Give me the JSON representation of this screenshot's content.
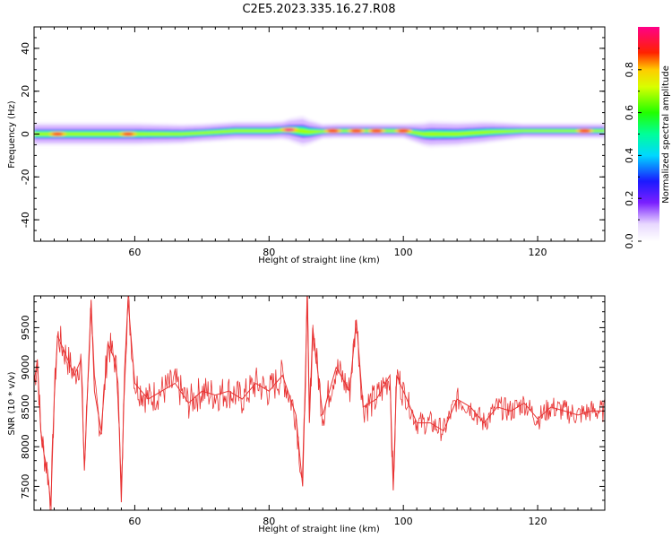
{
  "title": "C2E5.2023.335.16.27.R08",
  "chart_data": [
    {
      "type": "heatmap",
      "xlabel": "Height of straight line (km)",
      "ylabel": "Frequency (Hz)",
      "xlim": [
        45,
        130
      ],
      "ylim": [
        -50,
        50
      ],
      "xticks": [
        60,
        80,
        100,
        120
      ],
      "yticks": [
        -40,
        -20,
        0,
        20,
        40
      ],
      "xtick_labels": [
        "60",
        "80",
        "100",
        "120"
      ],
      "ytick_labels": [
        "-40",
        "-20",
        "0",
        "20",
        "40"
      ],
      "colorbar": {
        "label": "Normalized spectral amplitude",
        "range": [
          0,
          1
        ],
        "ticks": [
          0.0,
          0.2,
          0.4,
          0.6,
          0.8
        ],
        "tick_labels": [
          "0.0",
          "0.2",
          "0.4",
          "0.6",
          "0.8"
        ]
      },
      "band": {
        "center_hz": [
          [
            45,
            0
          ],
          [
            50,
            0
          ],
          [
            57,
            0
          ],
          [
            62,
            0
          ],
          [
            67,
            0
          ],
          [
            70,
            0.5
          ],
          [
            75,
            1.5
          ],
          [
            80,
            1.5
          ],
          [
            83,
            2
          ],
          [
            86,
            1
          ],
          [
            90,
            1.5
          ],
          [
            95,
            1.5
          ],
          [
            100,
            1.5
          ],
          [
            103,
            0
          ],
          [
            108,
            0
          ],
          [
            113,
            1
          ],
          [
            118,
            1.5
          ],
          [
            125,
            1.5
          ],
          [
            130,
            1.5
          ]
        ],
        "halfwidth_hz": [
          [
            45,
            3
          ],
          [
            60,
            3
          ],
          [
            70,
            2.5
          ],
          [
            82,
            2.5
          ],
          [
            85,
            4
          ],
          [
            88,
            2
          ],
          [
            100,
            2
          ],
          [
            104,
            3.5
          ],
          [
            112,
            3
          ],
          [
            118,
            2
          ],
          [
            130,
            2
          ]
        ],
        "peaks": [
          {
            "x": 48.5,
            "y": 0,
            "value": 0.95
          },
          {
            "x": 59,
            "y": 0,
            "value": 0.9
          },
          {
            "x": 83,
            "y": 2,
            "value": 1.0
          },
          {
            "x": 89.5,
            "y": 1.5,
            "value": 0.95
          },
          {
            "x": 93,
            "y": 1.5,
            "value": 0.9
          },
          {
            "x": 96,
            "y": 1.5,
            "value": 0.95
          },
          {
            "x": 100,
            "y": 1.5,
            "value": 0.9
          },
          {
            "x": 127,
            "y": 1.5,
            "value": 0.9
          }
        ]
      }
    },
    {
      "type": "line",
      "xlabel": "Height of straight line (km)",
      "ylabel": "SNR (10 * v/v)",
      "xlim": [
        45,
        130
      ],
      "ylim": [
        7200,
        9900
      ],
      "xticks": [
        60,
        80,
        100,
        120
      ],
      "yticks": [
        7500,
        8000,
        8500,
        9000,
        9500
      ],
      "xtick_labels": [
        "60",
        "80",
        "100",
        "120"
      ],
      "ytick_labels": [
        "7500",
        "8000",
        "8500",
        "9000",
        "9500"
      ],
      "series": [
        {
          "color": "#e83333",
          "x": [
            45,
            45.5,
            46,
            46.5,
            47,
            47.5,
            48,
            48.5,
            49,
            50,
            51,
            52,
            52.5,
            53,
            53.5,
            54,
            55,
            56,
            57,
            57.5,
            58,
            58.5,
            59,
            60,
            62,
            64,
            66,
            68,
            70,
            72,
            74,
            76,
            78,
            80,
            82,
            84,
            85,
            85.7,
            86,
            86.5,
            88,
            90,
            92,
            93,
            94,
            96,
            98,
            98.5,
            99,
            100,
            102,
            104,
            106,
            108,
            110,
            112,
            114,
            116,
            118,
            120,
            122,
            124,
            126,
            128,
            130
          ],
          "y": [
            8800,
            9100,
            8200,
            7900,
            7700,
            7250,
            8600,
            9400,
            9300,
            9100,
            8900,
            9100,
            7700,
            8800,
            9850,
            8700,
            8200,
            9300,
            9100,
            8800,
            7300,
            9000,
            9850,
            8800,
            8600,
            8700,
            8800,
            8550,
            8700,
            8650,
            8700,
            8600,
            8800,
            8700,
            8900,
            8400,
            7500,
            9900,
            8300,
            9500,
            8400,
            9000,
            8700,
            9600,
            8500,
            8600,
            8900,
            7450,
            8900,
            8700,
            8300,
            8300,
            8200,
            8600,
            8500,
            8300,
            8500,
            8450,
            8550,
            8350,
            8500,
            8450,
            8400,
            8450,
            8450
          ]
        }
      ]
    }
  ]
}
